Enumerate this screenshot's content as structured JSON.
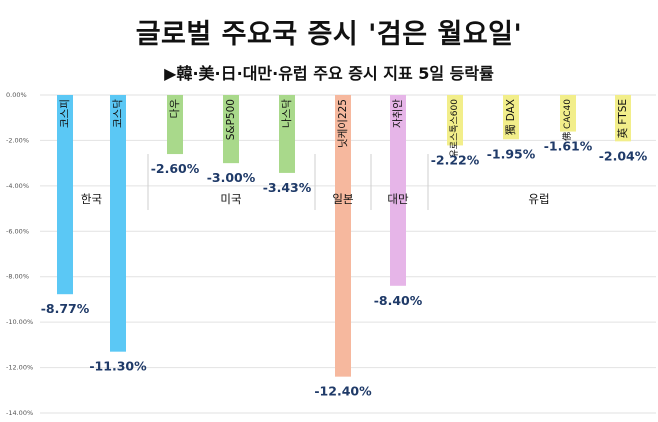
{
  "title": "글로벌 주요국 증시 '검은 월요일'",
  "subtitle": "▶韓·美·日·대만·유럽 주요 증시 지표 5일 등락률",
  "chart_data": {
    "type": "bar",
    "ylim": [
      -14,
      0
    ],
    "yticks": [
      0,
      -2,
      -4,
      -6,
      -8,
      -10,
      -12,
      -14
    ],
    "ytick_labels": [
      "0.00%",
      "-2.00%",
      "-4.00%",
      "-6.00%",
      "-8.00%",
      "-10.00%",
      "-12.00%",
      "-14.00%"
    ],
    "grid": true,
    "bars": [
      {
        "name": "코스피",
        "value": -8.77,
        "label": "-8.77%",
        "color": "#5BC8F5"
      },
      {
        "name": "코스닥",
        "value": -11.3,
        "label": "-11.30%",
        "color": "#5BC8F5"
      },
      {
        "name": "다우",
        "value": -2.6,
        "label": "-2.60%",
        "color": "#A9D98B"
      },
      {
        "name": "S&P500",
        "value": -3.0,
        "label": "-3.00%",
        "color": "#A9D98B"
      },
      {
        "name": "나스닥",
        "value": -3.43,
        "label": "-3.43%",
        "color": "#A9D98B"
      },
      {
        "name": "닛케이225",
        "value": -12.4,
        "label": "-12.40%",
        "color": "#F6B89E"
      },
      {
        "name": "자취안",
        "value": -8.4,
        "label": "-8.40%",
        "color": "#E6B5E8"
      },
      {
        "name": "유로스톡스600",
        "value": -2.22,
        "label": "-2.22%",
        "color": "#F2EE8A"
      },
      {
        "name": "獨 DAX",
        "value": -1.95,
        "label": "-1.95%",
        "color": "#F2EE8A"
      },
      {
        "name": "佛 CAC40",
        "value": -1.61,
        "label": "-1.61%",
        "color": "#F2EE8A"
      },
      {
        "name": "英 FTSE",
        "value": -2.04,
        "label": "-2.04%",
        "color": "#F2EE8A"
      }
    ],
    "groups": [
      {
        "name": "한국",
        "first": 0,
        "last": 1
      },
      {
        "name": "미국",
        "first": 2,
        "last": 4
      },
      {
        "name": "일본",
        "first": 5,
        "last": 5
      },
      {
        "name": "대만",
        "first": 6,
        "last": 6
      },
      {
        "name": "유럽",
        "first": 7,
        "last": 10
      }
    ],
    "value_label_color": "#1F3A68"
  }
}
